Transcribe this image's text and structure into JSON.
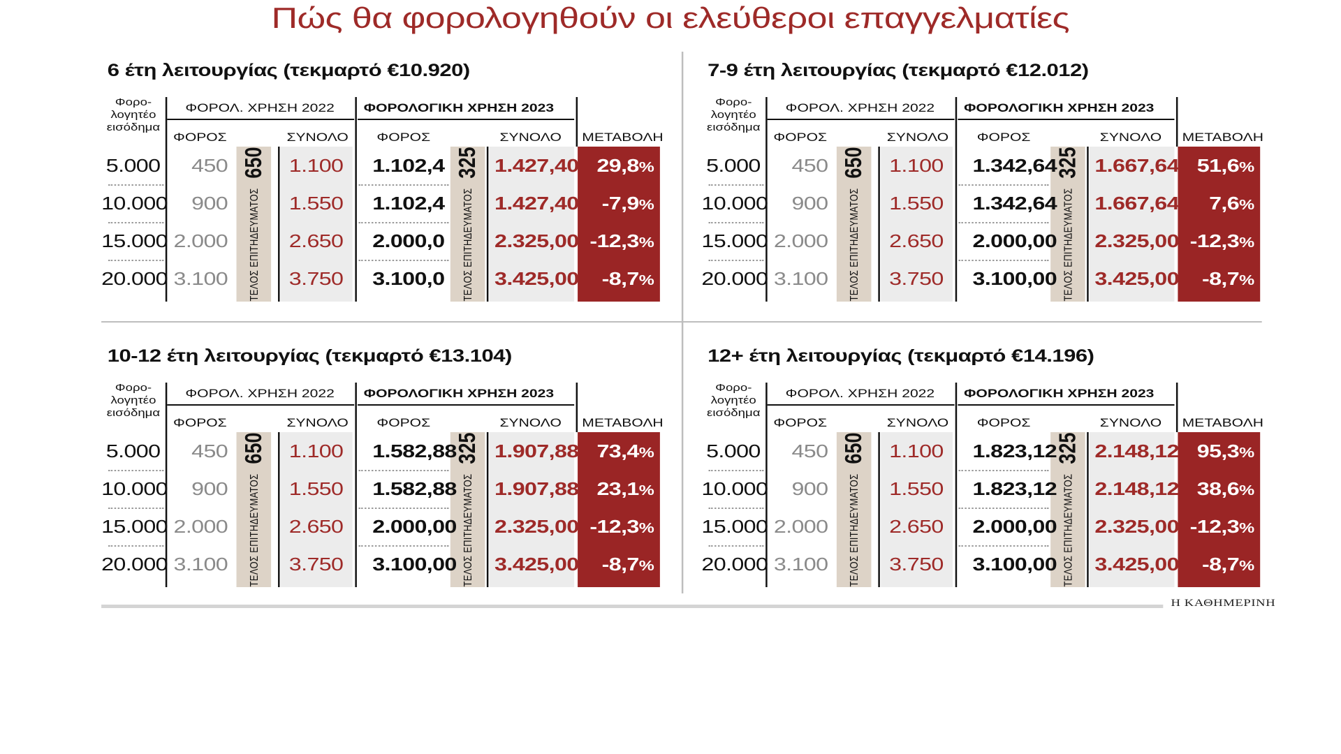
{
  "title": "Πώς θα φορολογηθούν οι ελεύθεροι επαγγελματίες",
  "credit": "Η ΚΑΘΗΜΕΡΙΝΗ",
  "headers": {
    "income": [
      "Φορο-",
      "λογητέο",
      "εισόδημα"
    ],
    "group_2022": "ΦΟΡΟΛ. ΧΡΗΣΗ 2022",
    "group_2023": "ΦΟΡΟΛΟΓΙΚΗ ΧΡΗΣΗ 2023",
    "tax": "ΦΟΡΟΣ",
    "total": "ΣΥΝΟΛΟ",
    "change": "ΜΕΤΑΒΟΛΗ"
  },
  "fee_label": "ΤΕΛΟΣ ΕΠΙΤΗΔΕΥΜΑΤΟΣ",
  "colors": {
    "accent_red": "#9a2525",
    "title_red": "#9e2a28",
    "grey_band": "#ececec",
    "beige_band": "#ddd3c7"
  },
  "chart_data": [
    {
      "type": "table",
      "title": "6 έτη λειτουργίας (τεκμαρτό €10.920)",
      "fee_2022": "650",
      "fee_2023": "325",
      "rows": [
        {
          "income": "5.000",
          "tax_2022": "450",
          "total_2022": "1.100",
          "tax_2023": "1.102,4",
          "total_2023": "1.427,40",
          "change": "29,8"
        },
        {
          "income": "10.000",
          "tax_2022": "900",
          "total_2022": "1.550",
          "tax_2023": "1.102,4",
          "total_2023": "1.427,40",
          "change": "-7,9"
        },
        {
          "income": "15.000",
          "tax_2022": "2.000",
          "total_2022": "2.650",
          "tax_2023": "2.000,0",
          "total_2023": "2.325,00",
          "change": "-12,3"
        },
        {
          "income": "20.000",
          "tax_2022": "3.100",
          "total_2022": "3.750",
          "tax_2023": "3.100,0",
          "total_2023": "3.425,00",
          "change": "-8,7"
        }
      ]
    },
    {
      "type": "table",
      "title": "7-9 έτη λειτουργίας (τεκμαρτό €12.012)",
      "fee_2022": "650",
      "fee_2023": "325",
      "rows": [
        {
          "income": "5.000",
          "tax_2022": "450",
          "total_2022": "1.100",
          "tax_2023": "1.342,64",
          "total_2023": "1.667,64",
          "change": "51,6"
        },
        {
          "income": "10.000",
          "tax_2022": "900",
          "total_2022": "1.550",
          "tax_2023": "1.342,64",
          "total_2023": "1.667,64",
          "change": "7,6"
        },
        {
          "income": "15.000",
          "tax_2022": "2.000",
          "total_2022": "2.650",
          "tax_2023": "2.000,00",
          "total_2023": "2.325,00",
          "change": "-12,3"
        },
        {
          "income": "20.000",
          "tax_2022": "3.100",
          "total_2022": "3.750",
          "tax_2023": "3.100,00",
          "total_2023": "3.425,00",
          "change": "-8,7"
        }
      ]
    },
    {
      "type": "table",
      "title": "10-12 έτη λειτουργίας (τεκμαρτό €13.104)",
      "fee_2022": "650",
      "fee_2023": "325",
      "rows": [
        {
          "income": "5.000",
          "tax_2022": "450",
          "total_2022": "1.100",
          "tax_2023": "1.582,88",
          "total_2023": "1.907,88",
          "change": "73,4"
        },
        {
          "income": "10.000",
          "tax_2022": "900",
          "total_2022": "1.550",
          "tax_2023": "1.582,88",
          "total_2023": "1.907,88",
          "change": "23,1"
        },
        {
          "income": "15.000",
          "tax_2022": "2.000",
          "total_2022": "2.650",
          "tax_2023": "2.000,00",
          "total_2023": "2.325,00",
          "change": "-12,3"
        },
        {
          "income": "20.000",
          "tax_2022": "3.100",
          "total_2022": "3.750",
          "tax_2023": "3.100,00",
          "total_2023": "3.425,00",
          "change": "-8,7"
        }
      ]
    },
    {
      "type": "table",
      "title": "12+ έτη λειτουργίας (τεκμαρτό €14.196)",
      "fee_2022": "650",
      "fee_2023": "325",
      "rows": [
        {
          "income": "5.000",
          "tax_2022": "450",
          "total_2022": "1.100",
          "tax_2023": "1.823,12",
          "total_2023": "2.148,12",
          "change": "95,3"
        },
        {
          "income": "10.000",
          "tax_2022": "900",
          "total_2022": "1.550",
          "tax_2023": "1.823,12",
          "total_2023": "2.148,12",
          "change": "38,6"
        },
        {
          "income": "15.000",
          "tax_2022": "2.000",
          "total_2022": "2.650",
          "tax_2023": "2.000,00",
          "total_2023": "2.325,00",
          "change": "-12,3"
        },
        {
          "income": "20.000",
          "tax_2022": "3.100",
          "total_2022": "3.750",
          "tax_2023": "3.100,00",
          "total_2023": "3.425,00",
          "change": "-8,7"
        }
      ]
    }
  ]
}
